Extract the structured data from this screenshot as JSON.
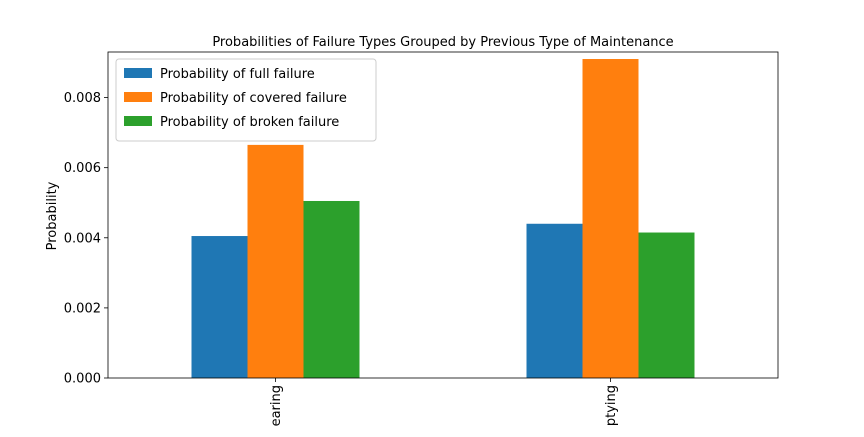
{
  "chart_data": {
    "type": "bar",
    "title": "Probabilities of Failure Types Grouped by Previous Type of Maintenance",
    "xlabel": "",
    "ylabel": "Probability",
    "categories": [
      "earing",
      "ptying"
    ],
    "ylim": [
      0,
      0.0093
    ],
    "yticks": [
      "0.000",
      "0.002",
      "0.004",
      "0.006",
      "0.008"
    ],
    "grid": false,
    "legend_position": "top-left",
    "series": [
      {
        "name": "Probability of full failure",
        "values": [
          0.00405,
          0.0044
        ],
        "color": "#1f77b4"
      },
      {
        "name": "Probability of covered failure",
        "values": [
          0.00665,
          0.0091
        ],
        "color": "#ff7f0e"
      },
      {
        "name": "Probability of broken failure",
        "values": [
          0.00505,
          0.00415
        ],
        "color": "#2ca02c"
      }
    ]
  }
}
